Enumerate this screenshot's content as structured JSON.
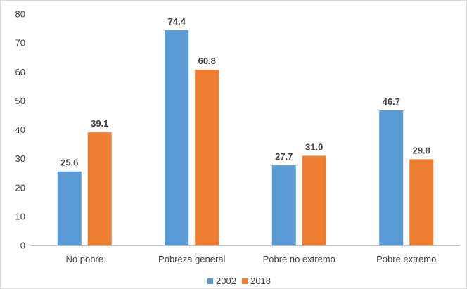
{
  "chart_data": {
    "type": "bar",
    "categories": [
      "No pobre",
      "Pobreza general",
      "Pobre no extremo",
      "Pobre extremo"
    ],
    "series": [
      {
        "name": "2002",
        "values": [
          25.6,
          74.4,
          27.7,
          46.7
        ],
        "color": "#5b9bd5"
      },
      {
        "name": "2018",
        "values": [
          39.1,
          60.8,
          31.0,
          29.8
        ],
        "color": "#ed7d31"
      }
    ],
    "data_labels": [
      [
        "25.6",
        "74.4",
        "27.7",
        "46.7"
      ],
      [
        "39.1",
        "60.8",
        "31.0",
        "29.8"
      ]
    ],
    "y_ticks": [
      0,
      10,
      20,
      30,
      40,
      50,
      60,
      70,
      80
    ],
    "ylim": [
      0,
      80
    ],
    "grid": false,
    "legend_position": "bottom"
  }
}
